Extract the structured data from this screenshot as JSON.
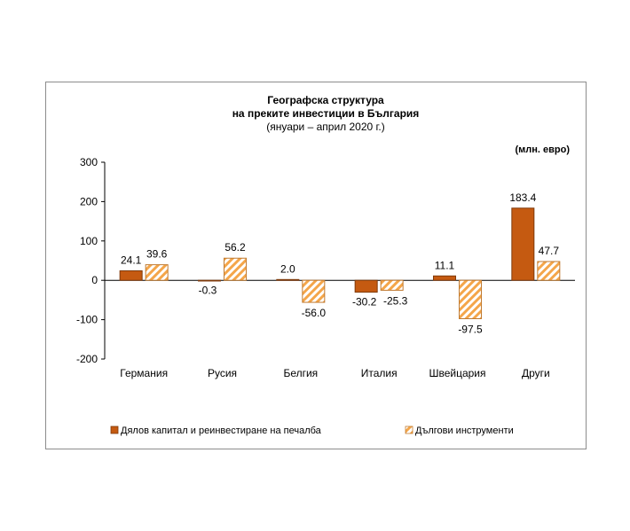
{
  "chart_data": {
    "type": "bar",
    "title_line1": "Географска структура",
    "title_line2": "на преките инвестиции в България",
    "subtitle": "(януари – април 2020 г.)",
    "unit": "(млн. евро)",
    "categories": [
      "Германия",
      "Русия",
      "Белгия",
      "Италия",
      "Швейцария",
      "Други"
    ],
    "series": [
      {
        "name": "Дялов капитал и реинвестиране на печалба",
        "values": [
          24.1,
          -0.3,
          2.0,
          -30.2,
          11.1,
          183.4
        ],
        "labels": [
          "24.1",
          "-0.3",
          "2.0",
          "-30.2",
          "11.1",
          "183.4"
        ],
        "color": "#c55a11"
      },
      {
        "name": "Дългови инструменти",
        "values": [
          39.6,
          56.2,
          -56.0,
          -25.3,
          -97.5,
          47.7
        ],
        "labels": [
          "39.6",
          "56.2",
          "-56.0",
          "-25.3",
          "-97.5",
          "47.7"
        ],
        "color": "#f4b183"
      }
    ],
    "yticks": [
      "300",
      "200",
      "100",
      "0",
      "-100",
      "-200"
    ],
    "ylim": [
      -200,
      300
    ]
  }
}
